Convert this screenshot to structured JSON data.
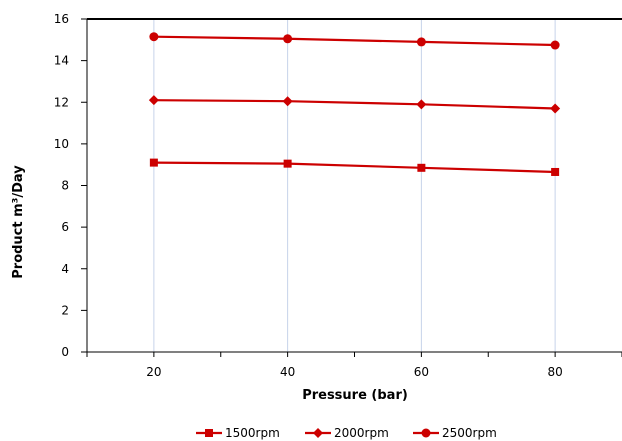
{
  "chart_data": {
    "type": "line",
    "title": "",
    "xlabel": "Pressure (bar)",
    "ylabel": "Product m³/Day",
    "x": [
      20,
      40,
      60,
      80
    ],
    "xlim": [
      10,
      90
    ],
    "ylim": [
      0,
      16
    ],
    "yticks": [
      "0",
      "2",
      "4",
      "6",
      "8",
      "10",
      "12",
      "14",
      "16"
    ],
    "xticks": [
      "20",
      "40",
      "60",
      "80"
    ],
    "grid": "vertical",
    "legend_position": "bottom",
    "line_color": "#cc0000",
    "series": [
      {
        "name": "1500rpm",
        "marker": "square",
        "values": [
          9.1,
          9.05,
          8.85,
          8.65
        ]
      },
      {
        "name": "2000rpm",
        "marker": "diamond",
        "values": [
          12.1,
          12.05,
          11.9,
          11.7
        ]
      },
      {
        "name": "2500rpm",
        "marker": "circle",
        "values": [
          15.15,
          15.05,
          14.9,
          14.75
        ]
      }
    ]
  }
}
